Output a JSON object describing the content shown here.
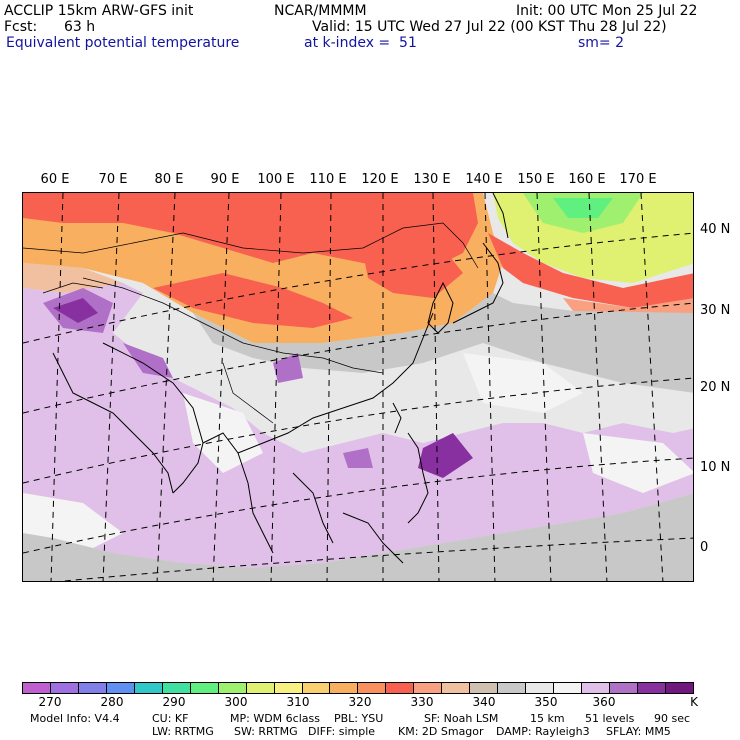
{
  "header": {
    "title": "ACCLIP 15km ARW-GFS init",
    "org": "NCAR/MMMM",
    "init": "Init: 00 UTC Mon 25 Jul 22",
    "fcst_label": "Fcst:",
    "fcst_value": "63 h",
    "valid": "Valid: 15 UTC Wed 27 Jul 22 (00 KST Thu 28 Jul 22)",
    "field": "Equivalent potential temperature",
    "level": "at k-index =  51",
    "smooth": "sm= 2"
  },
  "map": {
    "lon_labels": [
      "60 E",
      "70 E",
      "80 E",
      "90 E",
      "100 E",
      "110 E",
      "120 E",
      "130 E",
      "140 E",
      "150 E",
      "160 E",
      "170 E"
    ],
    "lat_labels": [
      "40 N",
      "30 N",
      "20 N",
      "10 N",
      "0"
    ]
  },
  "colorbar": {
    "ticks": [
      "270",
      "280",
      "290",
      "300",
      "310",
      "320",
      "330",
      "340",
      "350",
      "360"
    ],
    "unit": "K",
    "colors": [
      "#c060d0",
      "#a070e0",
      "#8080e8",
      "#6090f0",
      "#30c8c8",
      "#40e0a0",
      "#60f080",
      "#a0f070",
      "#e0f070",
      "#f8f080",
      "#f8d070",
      "#f8b060",
      "#f89060",
      "#f86050",
      "#f8a080",
      "#f0c0a0",
      "#d0c0b0",
      "#c8c8c8",
      "#e8e8e8",
      "#f4f4f4",
      "#e0c0e8",
      "#b070c8",
      "#8830a0",
      "#701880"
    ]
  },
  "footer": {
    "model_info": "Model Info: V4.4",
    "cu": "CU: KF",
    "mp": "MP: WDM 6class",
    "pbl": "PBL: YSU",
    "sf": "SF: Noah LSM",
    "res": "15 km",
    "levels": "51 levels",
    "dt": "90 sec",
    "lw": "LW: RRTMG",
    "sw": "SW: RRTMG",
    "diff": "DIFF: simple",
    "km": "KM: 2D Smagor",
    "damp": "DAMP: Rayleigh3",
    "sflay": "SFLAY: MM5"
  }
}
